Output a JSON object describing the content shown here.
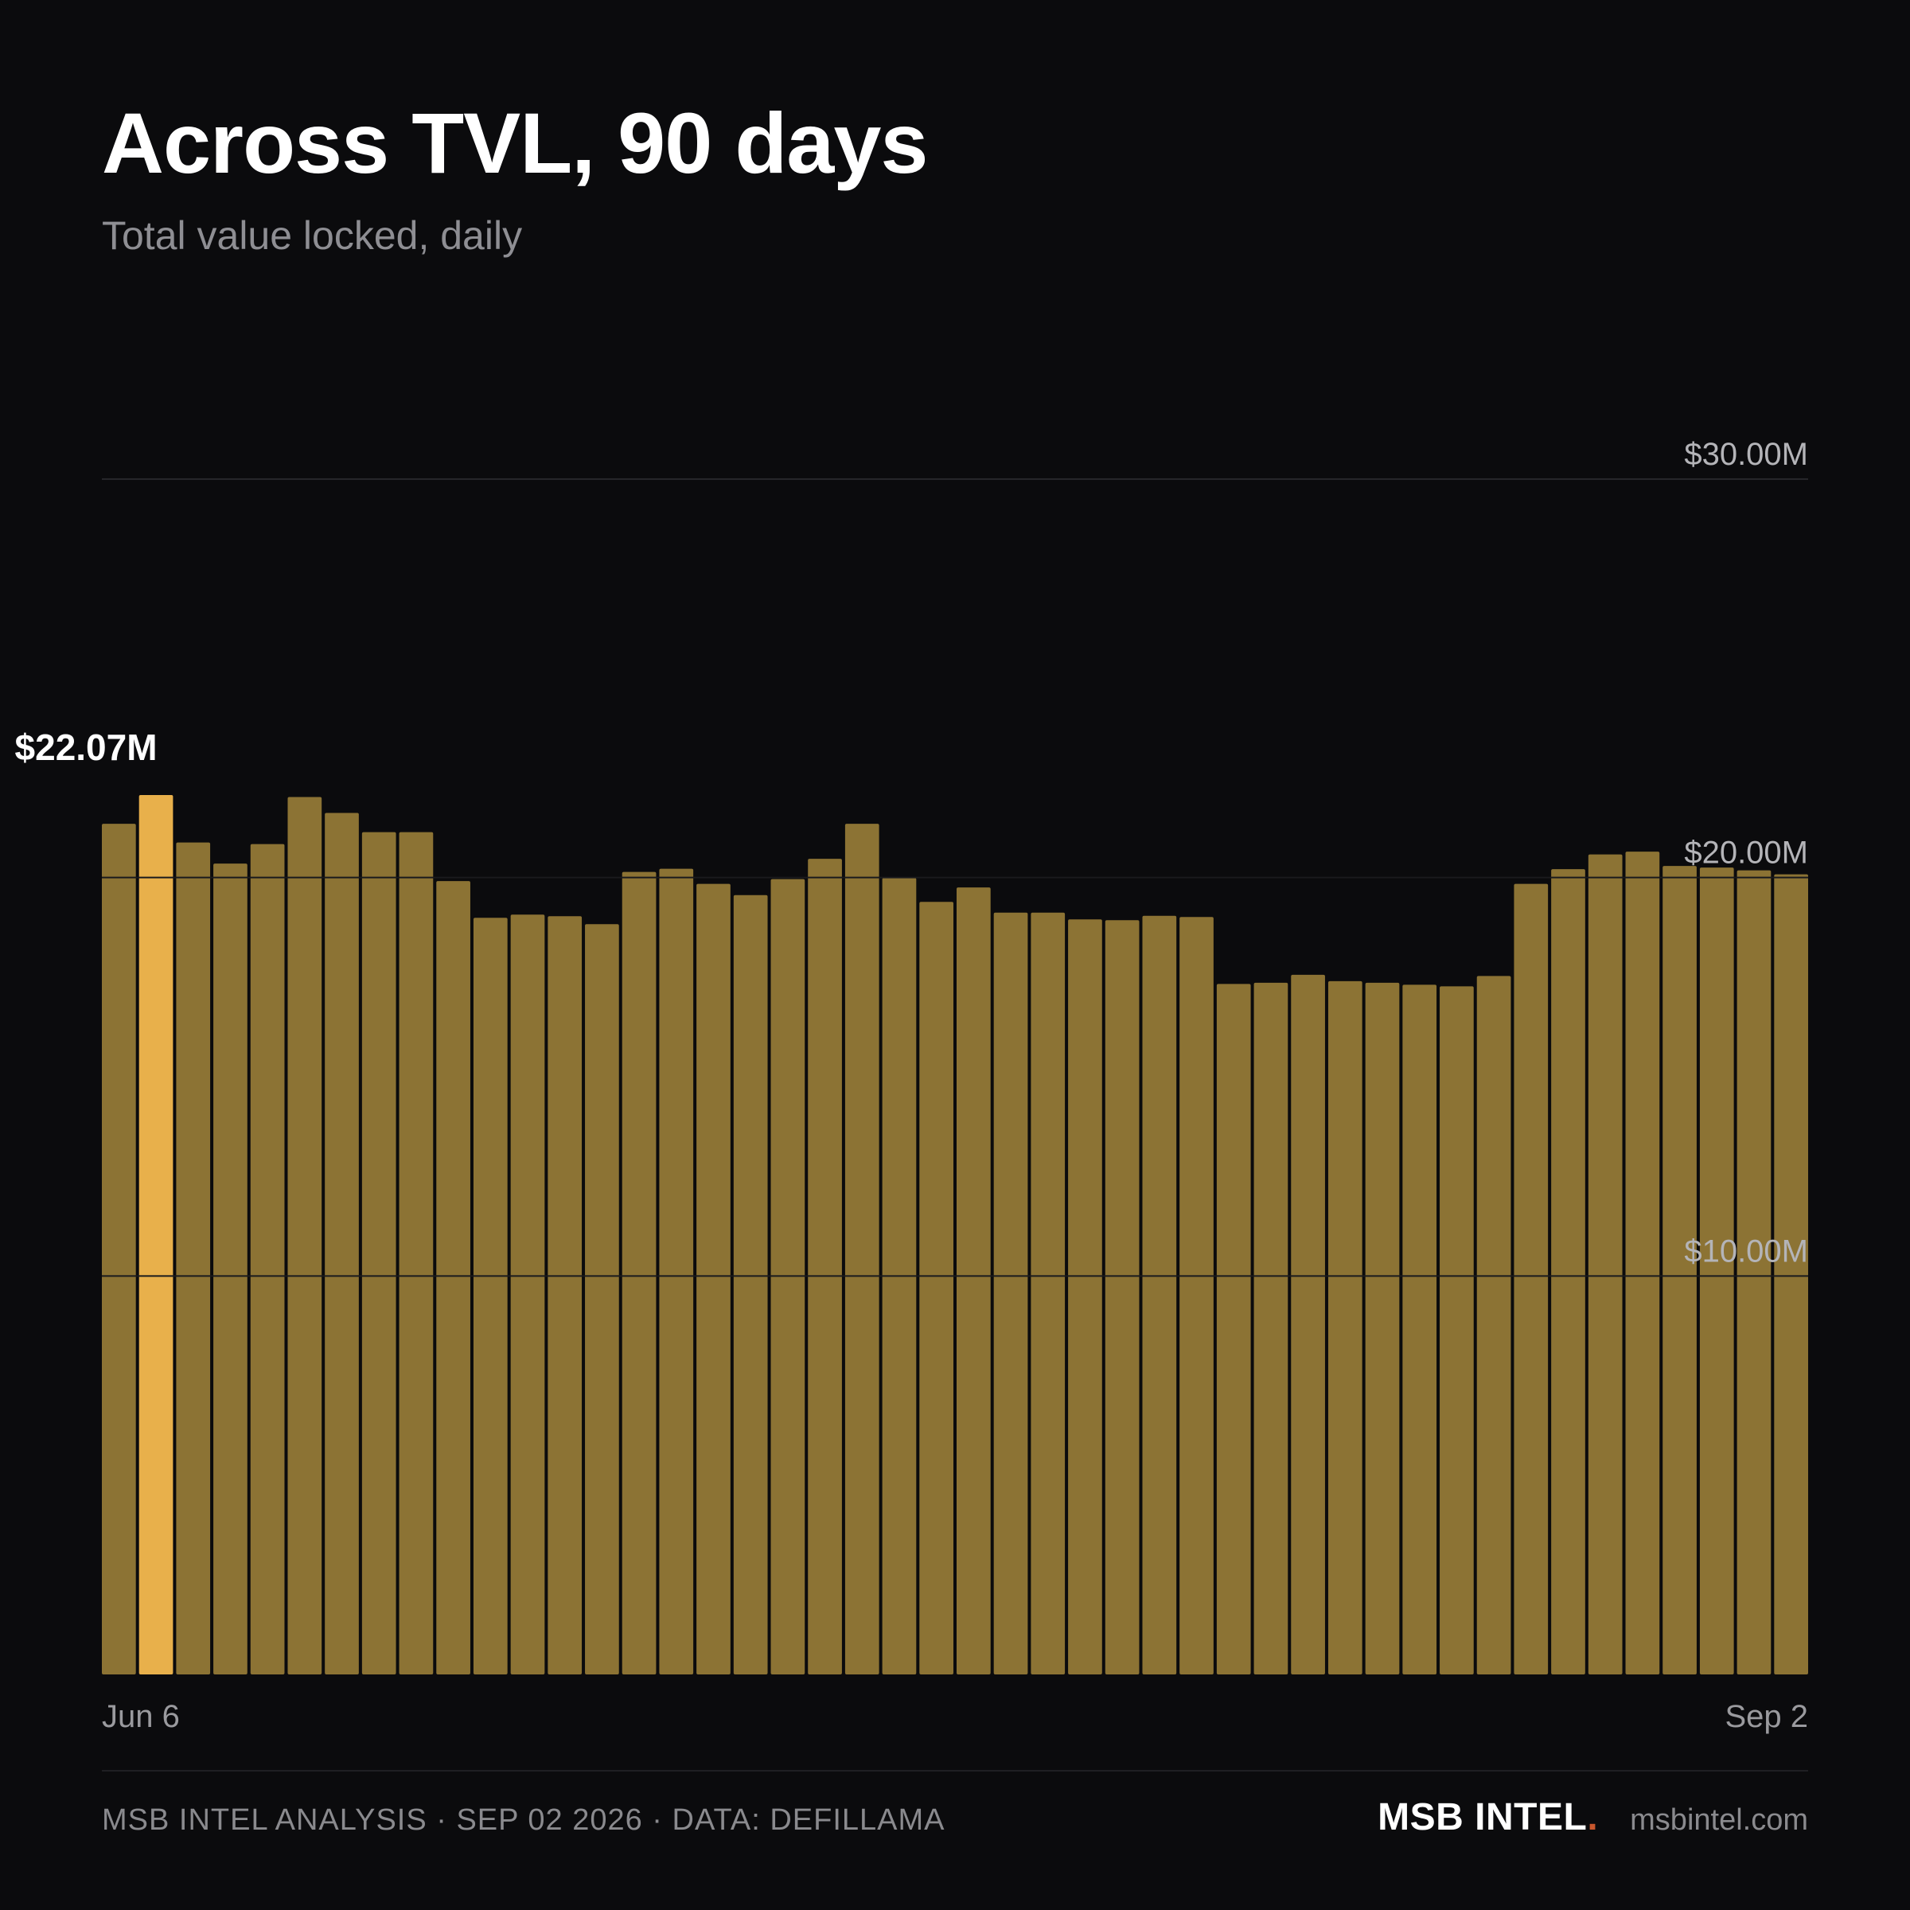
{
  "header": {
    "title": "Across TVL, 90 days",
    "subtitle": "Total value locked, daily"
  },
  "chart_data": {
    "type": "bar",
    "title": "Across TVL, 90 days",
    "subtitle": "Total value locked, daily",
    "x_start_label": "Jun 6",
    "x_end_label": "Sep 2",
    "ylim": [
      0,
      30
    ],
    "yticks": [
      10,
      20,
      30
    ],
    "ytick_labels": [
      "$10.00M",
      "$20.00M",
      "$30.00M"
    ],
    "grid": true,
    "highlight_index": 1,
    "highlight_label": "$22.07M",
    "values_unit": "$M",
    "values": [
      21.35,
      22.07,
      20.88,
      20.35,
      20.84,
      22.02,
      21.62,
      21.14,
      21.14,
      19.91,
      18.99,
      19.07,
      19.03,
      18.83,
      20.14,
      20.22,
      19.84,
      19.56,
      19.96,
      20.47,
      21.35,
      19.99,
      19.39,
      19.75,
      19.12,
      19.12,
      18.95,
      18.93,
      19.04,
      19.01,
      17.33,
      17.36,
      17.56,
      17.4,
      17.36,
      17.31,
      17.27,
      17.53,
      19.84,
      20.21,
      20.58,
      20.65,
      20.29,
      20.25,
      20.18,
      20.08
    ],
    "colors": {
      "bar": "#8c7334",
      "highlight_bar": "#e8b04b",
      "gridline": "#2a2a2e",
      "tick_label": "#b4b4b8"
    }
  },
  "footer": {
    "credit": "MSB INTEL ANALYSIS · SEP 02 2026 · DATA: DEFILLAMA",
    "brand": "MSB INTEL",
    "brand_dot": ".",
    "site": "msbintel.com",
    "brand_dot_color": "#c8572d"
  }
}
